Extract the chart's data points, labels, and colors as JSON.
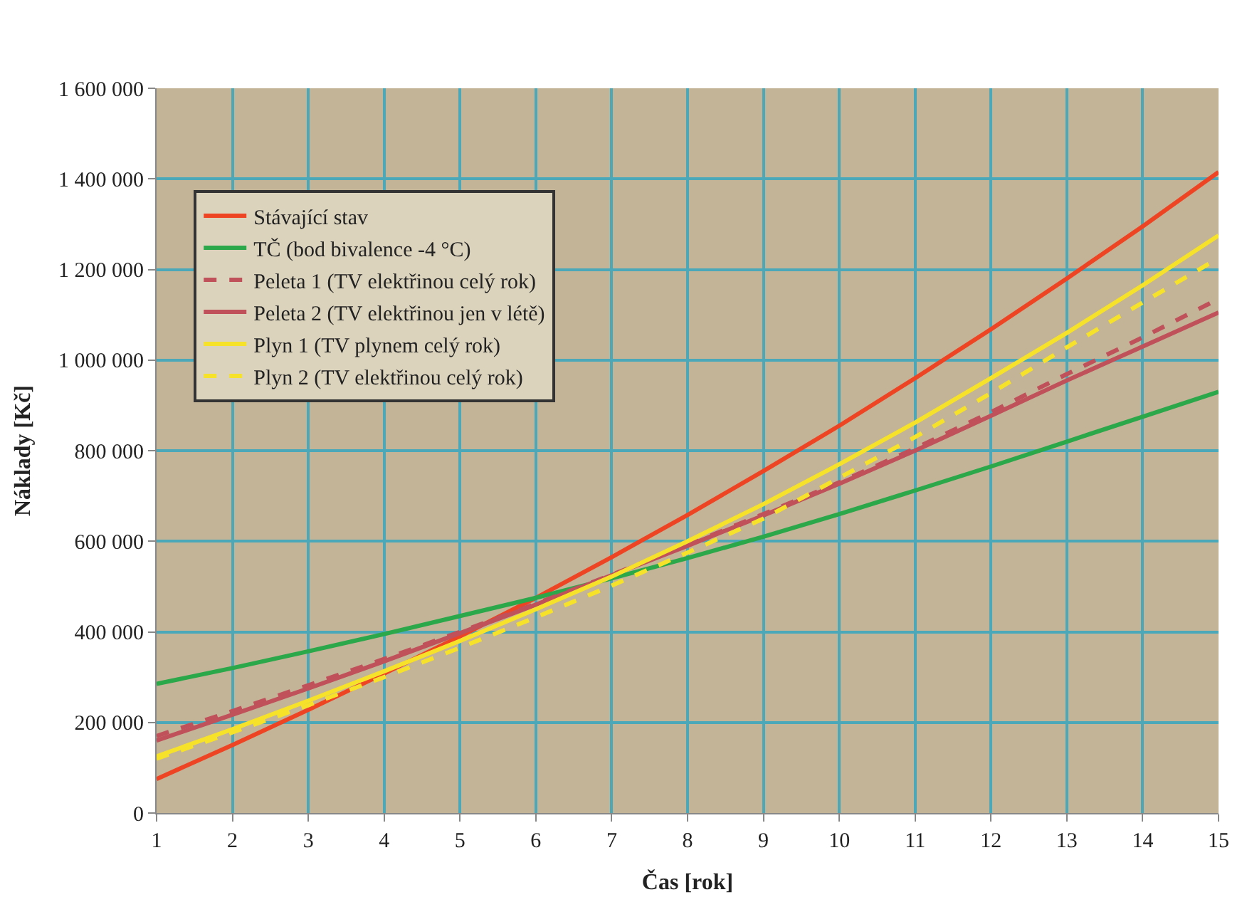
{
  "chart_data": {
    "type": "line",
    "xlabel": "Čas [rok]",
    "ylabel": "Náklady [Kč]",
    "x": [
      1,
      2,
      3,
      4,
      5,
      6,
      7,
      8,
      9,
      10,
      11,
      12,
      13,
      14,
      15
    ],
    "xlim": [
      1,
      15
    ],
    "xticks": [
      1,
      2,
      3,
      4,
      5,
      6,
      7,
      8,
      9,
      10,
      11,
      12,
      13,
      14,
      15
    ],
    "ylim": [
      0,
      1600000
    ],
    "yticks": [
      0,
      {
        "value": 200000,
        "label": "200 000"
      },
      {
        "value": 400000,
        "label": "400 000"
      },
      {
        "value": 600000,
        "label": "600 000"
      },
      {
        "value": 800000,
        "label": "800 000"
      },
      {
        "value": 1000000,
        "label": "1 000 000"
      },
      {
        "value": 1200000,
        "label": "1 200 000"
      },
      {
        "value": 1400000,
        "label": "1 400 000"
      },
      {
        "value": 1600000,
        "label": "1 600 000"
      }
    ],
    "grid": true,
    "legend": "top left",
    "marker": "none",
    "series": [
      {
        "name": "Stávající stav",
        "color": "#ee4423",
        "line_style": "solid",
        "values": [
          75000,
          150000,
          228000,
          308000,
          390000,
          475000,
          565000,
          658000,
          755000,
          855000,
          960000,
          1068000,
          1180000,
          1295000,
          1415000
        ]
      },
      {
        "name": "TČ (bod bivalence -4 °C)",
        "color": "#2aa84a",
        "line_style": "solid",
        "values": [
          285000,
          320000,
          357000,
          395000,
          435000,
          475000,
          518000,
          563000,
          610000,
          660000,
          712000,
          765000,
          820000,
          875000,
          930000
        ]
      },
      {
        "name": "Peleta 1 (TV elektřinou celý rok)",
        "color": "#c0505a",
        "line_style": "dashed",
        "values": [
          170000,
          225000,
          282000,
          340000,
          400000,
          462000,
          526000,
          592000,
          660000,
          730000,
          805000,
          885000,
          969000,
          1050000,
          1135000
        ]
      },
      {
        "name": "Peleta 2 (TV elektřinou jen v létě)",
        "color": "#c0505a",
        "line_style": "solid",
        "values": [
          160000,
          217000,
          275000,
          335000,
          397000,
          460000,
          525000,
          590000,
          657000,
          727000,
          800000,
          877000,
          955000,
          1030000,
          1105000
        ]
      },
      {
        "name": "Plyn 1 (TV plynem celý rok)",
        "color": "#f7e22a",
        "line_style": "solid",
        "values": [
          125000,
          185000,
          248000,
          313000,
          380000,
          450000,
          522000,
          600000,
          682000,
          770000,
          862000,
          960000,
          1060000,
          1165000,
          1275000
        ]
      },
      {
        "name": "Plyn 2 (TV elektřinou celý rok)",
        "color": "#f7e22a",
        "line_style": "dashed",
        "values": [
          120000,
          178000,
          238000,
          300000,
          365000,
          432000,
          502000,
          575000,
          650000,
          740000,
          830000,
          927000,
          1028000,
          1127000,
          1225000
        ]
      }
    ]
  }
}
